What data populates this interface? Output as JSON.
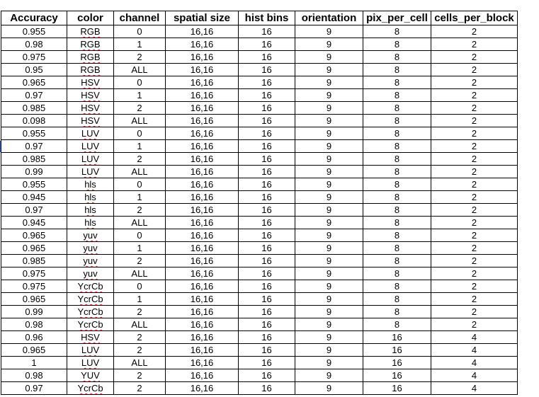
{
  "headers": [
    "Accuracy",
    "color",
    "channel",
    "spatial size",
    "hist bins",
    "orientation",
    "pix_per_cell",
    "cells_per_block"
  ],
  "rows": [
    [
      "0.955",
      "RGB",
      "0",
      "16,16",
      "16",
      "9",
      "8",
      "2"
    ],
    [
      "0.98",
      "RGB",
      "1",
      "16,16",
      "16",
      "9",
      "8",
      "2"
    ],
    [
      "0.975",
      "RGB",
      "2",
      "16,16",
      "16",
      "9",
      "8",
      "2"
    ],
    [
      "0.95",
      "RGB",
      "ALL",
      "16,16",
      "16",
      "9",
      "8",
      "2"
    ],
    [
      "0.965",
      "HSV",
      "0",
      "16,16",
      "16",
      "9",
      "8",
      "2"
    ],
    [
      "0.97",
      "HSV",
      "1",
      "16,16",
      "16",
      "9",
      "8",
      "2"
    ],
    [
      "0.985",
      "HSV",
      "2",
      "16,16",
      "16",
      "9",
      "8",
      "2"
    ],
    [
      "0.098",
      "HSV",
      "ALL",
      "16,16",
      "16",
      "9",
      "8",
      "2"
    ],
    [
      "0.955",
      "LUV",
      "0",
      "16,16",
      "16",
      "9",
      "8",
      "2"
    ],
    [
      "0.97",
      "LUV",
      "1",
      "16,16",
      "16",
      "9",
      "8",
      "2"
    ],
    [
      "0.985",
      "LUV",
      "2",
      "16,16",
      "16",
      "9",
      "8",
      "2"
    ],
    [
      "0.99",
      "LUV",
      "ALL",
      "16,16",
      "16",
      "9",
      "8",
      "2"
    ],
    [
      "0.955",
      "hls",
      "0",
      "16,16",
      "16",
      "9",
      "8",
      "2"
    ],
    [
      "0.945",
      "hls",
      "1",
      "16,16",
      "16",
      "9",
      "8",
      "2"
    ],
    [
      "0.97",
      "hls",
      "2",
      "16,16",
      "16",
      "9",
      "8",
      "2"
    ],
    [
      "0.945",
      "hls",
      "ALL",
      "16,16",
      "16",
      "9",
      "8",
      "2"
    ],
    [
      "0.965",
      "yuv",
      "0",
      "16,16",
      "16",
      "9",
      "8",
      "2"
    ],
    [
      "0.965",
      "yuv",
      "1",
      "16,16",
      "16",
      "9",
      "8",
      "2"
    ],
    [
      "0.985",
      "yuv",
      "2",
      "16,16",
      "16",
      "9",
      "8",
      "2"
    ],
    [
      "0.975",
      "yuv",
      "ALL",
      "16,16",
      "16",
      "9",
      "8",
      "2"
    ],
    [
      "0.975",
      "YcrCb",
      "0",
      "16,16",
      "16",
      "9",
      "8",
      "2"
    ],
    [
      "0.965",
      "YcrCb",
      "1",
      "16,16",
      "16",
      "9",
      "8",
      "2"
    ],
    [
      "0.99",
      "YcrCb",
      "2",
      "16,16",
      "16",
      "9",
      "8",
      "2"
    ],
    [
      "0.98",
      "YcrCb",
      "ALL",
      "16,16",
      "16",
      "9",
      "8",
      "2"
    ],
    [
      "0.96",
      "HSV",
      "2",
      "16,16",
      "16",
      "9",
      "16",
      "4"
    ],
    [
      "0.965",
      "LUV",
      "2",
      "16,16",
      "16",
      "9",
      "16",
      "4"
    ],
    [
      "1",
      "LUV",
      "ALL",
      "16,16",
      "16",
      "9",
      "16",
      "4"
    ],
    [
      "0.98",
      "YUV",
      "2",
      "16,16",
      "16",
      "9",
      "16",
      "4"
    ],
    [
      "0.97",
      "YcrCb",
      "2",
      "16,16",
      "16",
      "9",
      "16",
      "4"
    ]
  ],
  "spellcheck_color": "#d03030",
  "cursor_color": "#2a6ad8"
}
